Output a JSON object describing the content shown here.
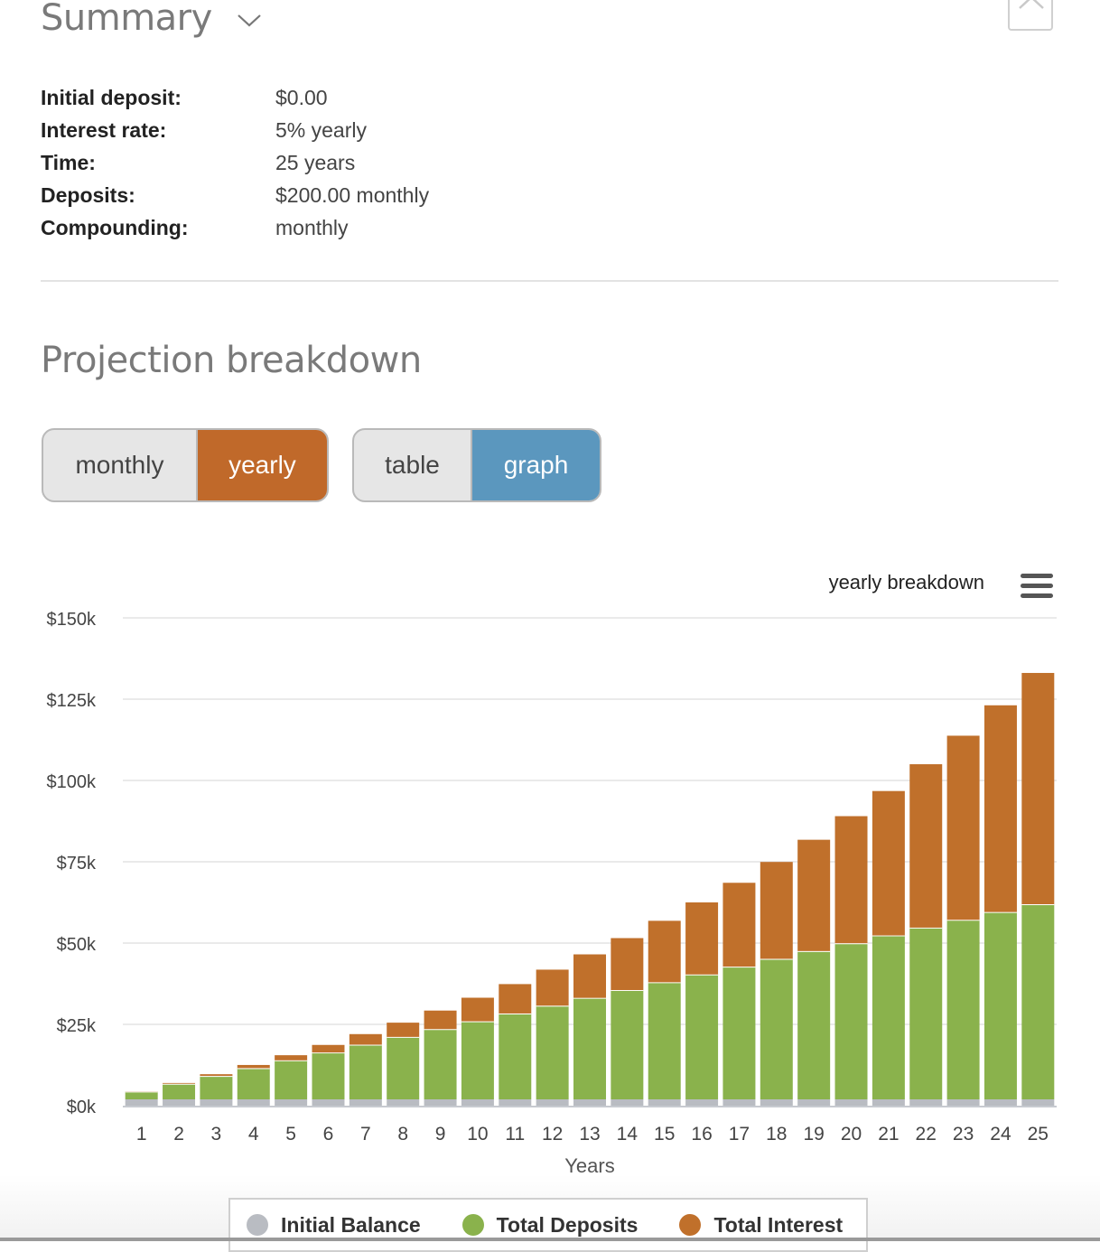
{
  "summary": {
    "title": "Summary",
    "rows": [
      {
        "label": "Initial deposit:",
        "value": "$0.00"
      },
      {
        "label": "Interest rate:",
        "value": "5% yearly"
      },
      {
        "label": "Time:",
        "value": "25 years"
      },
      {
        "label": "Deposits:",
        "value": "$200.00 monthly"
      },
      {
        "label": "Compounding:",
        "value": "monthly"
      }
    ]
  },
  "projection": {
    "title": "Projection breakdown",
    "period_toggle": {
      "monthly": "monthly",
      "yearly": "yearly",
      "selected": "yearly"
    },
    "view_toggle": {
      "table": "table",
      "graph": "graph",
      "selected": "graph"
    }
  },
  "colors": {
    "initial_balance": "#b9bcc2",
    "total_deposits": "#8ab24c",
    "total_interest": "#c0702b",
    "accent_orange": "#c0692a",
    "accent_blue": "#5b97be"
  },
  "chart_data": {
    "type": "bar",
    "stacked": true,
    "title": "yearly breakdown",
    "xlabel": "Years",
    "ylabel": "",
    "categories": [
      "1",
      "2",
      "3",
      "4",
      "5",
      "6",
      "7",
      "8",
      "9",
      "10",
      "11",
      "12",
      "13",
      "14",
      "15",
      "16",
      "17",
      "18",
      "19",
      "20",
      "21",
      "22",
      "23",
      "24",
      "25"
    ],
    "ylim": [
      0,
      150000
    ],
    "yticks": [
      "$0k",
      "$25k",
      "$50k",
      "$75k",
      "$100k",
      "$125k",
      "$150k"
    ],
    "grid": true,
    "legend_position": "bottom-center",
    "series": [
      {
        "name": "Initial Balance",
        "color": "#b9bcc2",
        "values": [
          0,
          0,
          0,
          0,
          0,
          0,
          0,
          0,
          0,
          0,
          0,
          0,
          0,
          0,
          0,
          0,
          0,
          0,
          0,
          0,
          0,
          0,
          0,
          0,
          0
        ]
      },
      {
        "name": "Total Deposits",
        "color": "#8ab24c",
        "values": [
          2400,
          4800,
          7200,
          9600,
          12000,
          14400,
          16800,
          19200,
          21600,
          24000,
          26400,
          28800,
          31200,
          33600,
          36000,
          38400,
          40800,
          43200,
          45600,
          48000,
          50400,
          52800,
          55200,
          57600,
          60000
        ]
      },
      {
        "name": "Total Interest",
        "color": "#c0702b",
        "values": [
          55,
          228,
          530,
          970,
          1570,
          2330,
          3260,
          4380,
          5700,
          7250,
          9040,
          11080,
          13380,
          15980,
          18900,
          22160,
          25790,
          29800,
          34220,
          39080,
          44410,
          50250,
          56620,
          63570,
          71120
        ]
      }
    ]
  }
}
